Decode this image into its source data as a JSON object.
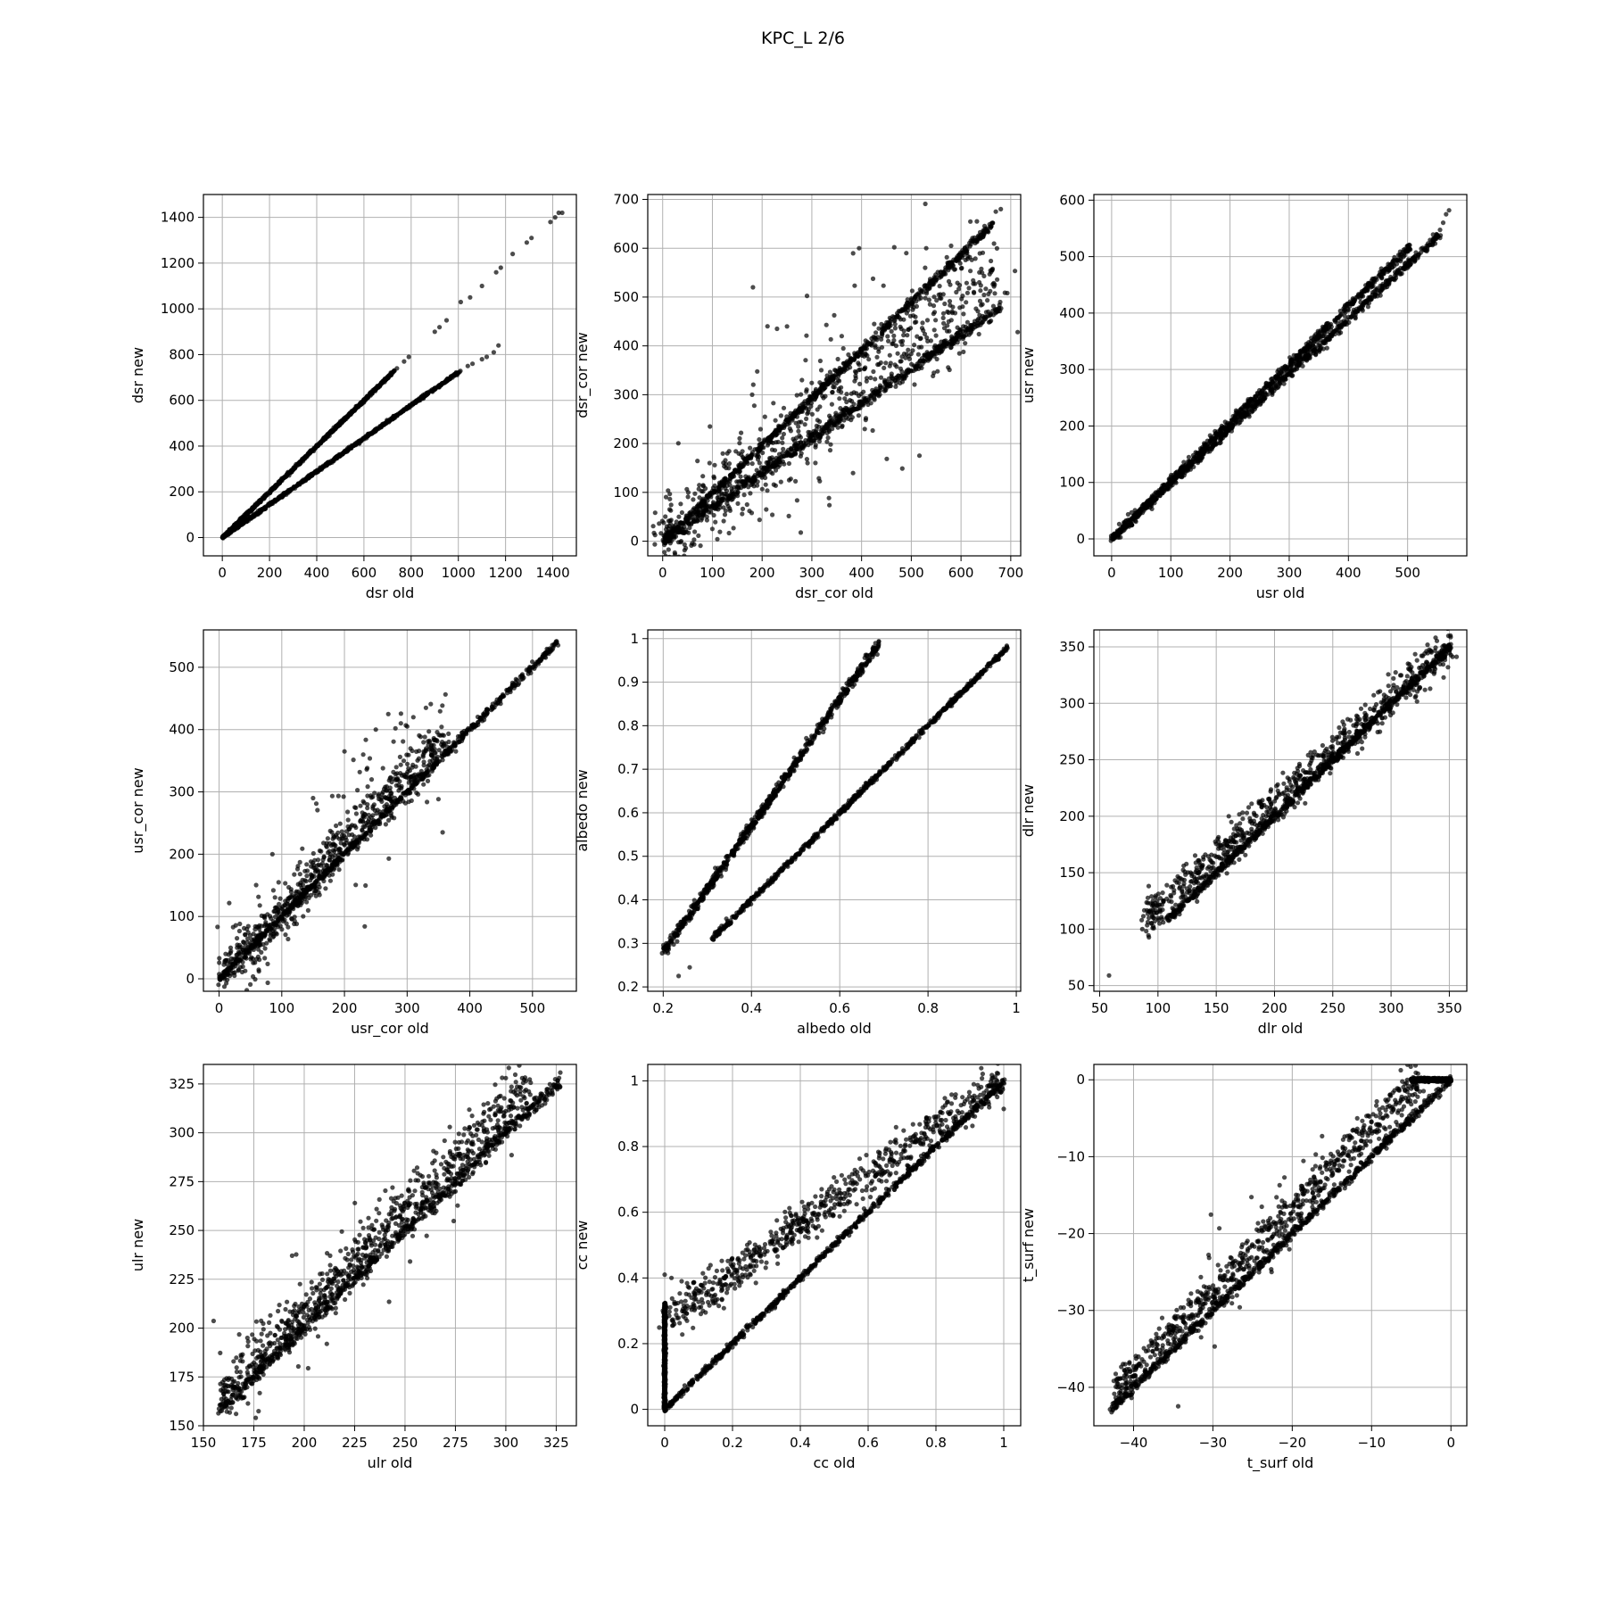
{
  "figure": {
    "title": "KPC_L 2/6"
  },
  "style": {
    "point_color": "#000000",
    "grid_color": "#b0b0b0",
    "axis_color": "#000000"
  },
  "chart_data": [
    {
      "type": "scatter",
      "xlabel": "dsr old",
      "ylabel": "dsr new",
      "xlim": [
        -80,
        1500
      ],
      "ylim": [
        -80,
        1500
      ],
      "xticks": [
        0,
        200,
        400,
        600,
        800,
        1000,
        1200,
        1400
      ],
      "yticks": [
        0,
        200,
        400,
        600,
        800,
        1000,
        1200,
        1400
      ],
      "grid": true,
      "segments": [
        {
          "from": [
            0,
            0
          ],
          "to": [
            730,
            730
          ],
          "spread": 3,
          "outlier_frac": 0
        },
        {
          "from": [
            0,
            0
          ],
          "to": [
            1010,
            730
          ],
          "spread": 3,
          "outlier_frac": 0
        }
      ],
      "points": [
        [
          740,
          740
        ],
        [
          770,
          770
        ],
        [
          790,
          790
        ],
        [
          900,
          900
        ],
        [
          920,
          920
        ],
        [
          950,
          950
        ],
        [
          1010,
          1030
        ],
        [
          1050,
          1050
        ],
        [
          1100,
          1100
        ],
        [
          1160,
          1160
        ],
        [
          1180,
          1180
        ],
        [
          1230,
          1240
        ],
        [
          1290,
          1290
        ],
        [
          1310,
          1310
        ],
        [
          1390,
          1380
        ],
        [
          1410,
          1400
        ],
        [
          1425,
          1420
        ],
        [
          1440,
          1420
        ],
        [
          1040,
          750
        ],
        [
          1060,
          760
        ],
        [
          1100,
          780
        ],
        [
          1120,
          790
        ],
        [
          1150,
          810
        ],
        [
          1170,
          840
        ]
      ]
    },
    {
      "type": "scatter",
      "xlabel": "dsr_cor old",
      "ylabel": "dsr_cor new",
      "xlim": [
        -30,
        720
      ],
      "ylim": [
        -30,
        710
      ],
      "xticks": [
        0,
        100,
        200,
        300,
        400,
        500,
        600,
        700
      ],
      "yticks": [
        0,
        100,
        200,
        300,
        400,
        500,
        600,
        700
      ],
      "grid": true,
      "segments": [
        {
          "from": [
            0,
            0
          ],
          "to": [
            665,
            650
          ],
          "spread": 4,
          "outlier_frac": 0
        },
        {
          "from": [
            0,
            0
          ],
          "to": [
            680,
            480
          ],
          "spread": 6,
          "outlier_frac": 0
        },
        {
          "from": [
            0,
            0
          ],
          "to": [
            670,
            560
          ],
          "spread": 45,
          "outlier_frac": 0.15
        }
      ],
      "points": [
        [
          395,
          600
        ],
        [
          530,
          600
        ],
        [
          490,
          590
        ],
        [
          580,
          605
        ],
        [
          360,
          420
        ],
        [
          230,
          435
        ],
        [
          180,
          300
        ],
        [
          250,
          440
        ],
        [
          130,
          180
        ],
        [
          95,
          235
        ],
        [
          280,
          330
        ],
        [
          670,
          675
        ],
        [
          680,
          680
        ]
      ]
    },
    {
      "type": "scatter",
      "xlabel": "usr old",
      "ylabel": "usr new",
      "xlim": [
        -30,
        600
      ],
      "ylim": [
        -30,
        610
      ],
      "xticks": [
        0,
        100,
        200,
        300,
        400,
        500
      ],
      "yticks": [
        0,
        100,
        200,
        300,
        400,
        500,
        600
      ],
      "grid": true,
      "segments": [
        {
          "from": [
            0,
            0
          ],
          "to": [
            505,
            520
          ],
          "spread": 4,
          "outlier_frac": 0
        },
        {
          "from": [
            0,
            0
          ],
          "to": [
            555,
            540
          ],
          "spread": 4,
          "outlier_frac": 0
        }
      ],
      "points": [
        [
          560,
          560
        ],
        [
          565,
          575
        ],
        [
          570,
          582
        ]
      ]
    },
    {
      "type": "scatter",
      "xlabel": "usr_cor old",
      "ylabel": "usr_cor new",
      "xlim": [
        -25,
        570
      ],
      "ylim": [
        -20,
        560
      ],
      "xticks": [
        0,
        100,
        200,
        300,
        400,
        500
      ],
      "yticks": [
        0,
        100,
        200,
        300,
        400,
        500
      ],
      "grid": true,
      "segments": [
        {
          "from": [
            0,
            0
          ],
          "to": [
            540,
            540
          ],
          "spread": 3,
          "outlier_frac": 0
        },
        {
          "from": [
            0,
            0
          ],
          "to": [
            360,
            390
          ],
          "spread": 18,
          "outlier_frac": 0.2
        }
      ],
      "points": [
        [
          270,
          425
        ],
        [
          330,
          435
        ],
        [
          310,
          420
        ],
        [
          200,
          365
        ],
        [
          180,
          235
        ],
        [
          150,
          290
        ],
        [
          85,
          200
        ],
        [
          230,
          360
        ],
        [
          250,
          400
        ],
        [
          290,
          410
        ]
      ]
    },
    {
      "type": "scatter",
      "xlabel": "albedo old",
      "ylabel": "albedo new",
      "xlim": [
        0.165,
        1.01
      ],
      "ylim": [
        0.19,
        1.02
      ],
      "xticks": [
        0.2,
        0.4,
        0.6,
        0.8,
        1.0
      ],
      "yticks": [
        0.2,
        0.3,
        0.4,
        0.5,
        0.6,
        0.7,
        0.8,
        0.9,
        1.0
      ],
      "grid": true,
      "segments": [
        {
          "from": [
            0.2,
            0.28
          ],
          "to": [
            0.69,
            0.99
          ],
          "spread": 0.006,
          "outlier_frac": 0
        },
        {
          "from": [
            0.31,
            0.31
          ],
          "to": [
            0.98,
            0.98
          ],
          "spread": 0.003,
          "outlier_frac": 0
        }
      ],
      "points": [
        [
          0.235,
          0.225
        ],
        [
          0.26,
          0.245
        ]
      ]
    },
    {
      "type": "scatter",
      "xlabel": "dlr old",
      "ylabel": "dlr new",
      "xlim": [
        45,
        365
      ],
      "ylim": [
        45,
        365
      ],
      "xticks": [
        50,
        100,
        150,
        200,
        250,
        300,
        350
      ],
      "yticks": [
        50,
        100,
        150,
        200,
        250,
        300,
        350
      ],
      "grid": true,
      "segments": [
        {
          "from": [
            88,
            108
          ],
          "to": [
            352,
            352
          ],
          "spread": 9,
          "outlier_frac": 0
        },
        {
          "from": [
            108,
            108
          ],
          "to": [
            352,
            352
          ],
          "spread": 2,
          "outlier_frac": 0
        }
      ],
      "points": [
        [
          58,
          59
        ]
      ]
    },
    {
      "type": "scatter",
      "xlabel": "ulr old",
      "ylabel": "ulr new",
      "xlim": [
        150,
        335
      ],
      "ylim": [
        150,
        335
      ],
      "xticks": [
        150,
        175,
        200,
        225,
        250,
        275,
        300,
        325
      ],
      "yticks": [
        150,
        175,
        200,
        225,
        250,
        275,
        300,
        325
      ],
      "grid": true,
      "segments": [
        {
          "from": [
            158,
            158
          ],
          "to": [
            327,
            327
          ],
          "spread": 2,
          "outlier_frac": 0
        },
        {
          "from": [
            158,
            166
          ],
          "to": [
            310,
            322
          ],
          "spread": 6,
          "outlier_frac": 0.1
        }
      ],
      "points": [
        [
          300,
          328
        ],
        [
          305,
          326
        ],
        [
          310,
          322
        ],
        [
          315,
          318
        ]
      ]
    },
    {
      "type": "scatter",
      "xlabel": "cc old",
      "ylabel": "cc new",
      "xlim": [
        -0.05,
        1.05
      ],
      "ylim": [
        -0.05,
        1.05
      ],
      "xticks": [
        0.0,
        0.2,
        0.4,
        0.6,
        0.8,
        1.0
      ],
      "yticks": [
        0.0,
        0.2,
        0.4,
        0.6,
        0.8,
        1.0
      ],
      "grid": true,
      "segments": [
        {
          "from": [
            0.0,
            0.0
          ],
          "to": [
            1.0,
            1.0
          ],
          "spread": 0.005,
          "outlier_frac": 0
        },
        {
          "from": [
            0.0,
            0.27
          ],
          "to": [
            1.0,
            1.0
          ],
          "spread": 0.03,
          "outlier_frac": 0
        },
        {
          "from": [
            0.0,
            0.0
          ],
          "to": [
            0.0,
            0.32
          ],
          "spread": 0.004,
          "outlier_frac": 0
        }
      ],
      "points": [
        [
          0.02,
          0.4
        ],
        [
          0.05,
          0.39
        ],
        [
          0.0,
          0.41
        ],
        [
          0.25,
          0.48
        ],
        [
          0.4,
          0.55
        ]
      ]
    },
    {
      "type": "scatter",
      "xlabel": "t_surf old",
      "ylabel": "t_surf new",
      "xlim": [
        -45,
        2
      ],
      "ylim": [
        -45,
        2
      ],
      "xticks": [
        -40,
        -30,
        -20,
        -10,
        0
      ],
      "yticks": [
        -40,
        -30,
        -20,
        -10,
        0
      ],
      "grid": true,
      "segments": [
        {
          "from": [
            -43,
            -43
          ],
          "to": [
            0,
            0
          ],
          "spread": 0.3,
          "outlier_frac": 0
        },
        {
          "from": [
            -42,
            -40
          ],
          "to": [
            -4,
            0
          ],
          "spread": 1.2,
          "outlier_frac": 0.1
        },
        {
          "from": [
            -5,
            0
          ],
          "to": [
            0,
            0
          ],
          "spread": 0.1,
          "outlier_frac": 0
        }
      ],
      "points": [
        [
          -42,
          -40
        ],
        [
          -41,
          -39.5
        ]
      ]
    }
  ]
}
